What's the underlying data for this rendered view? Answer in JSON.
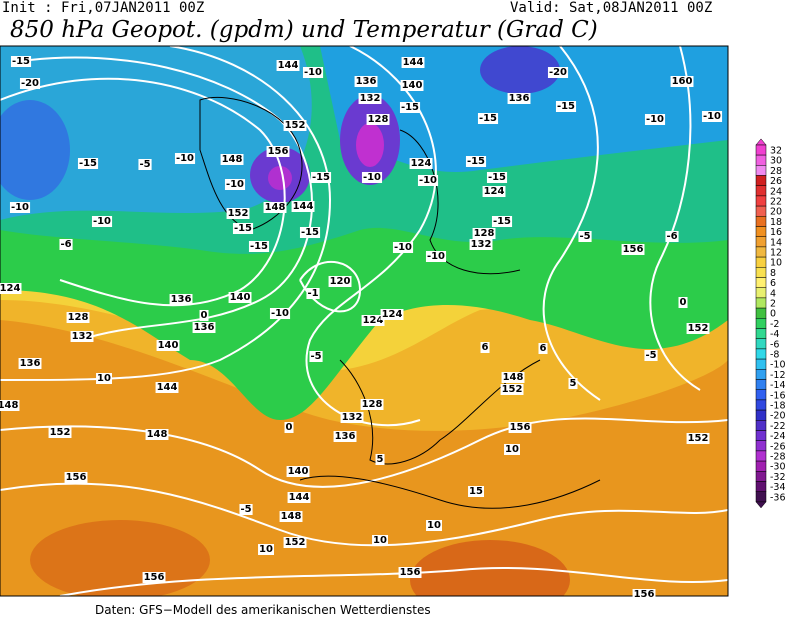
{
  "header": {
    "init": "Init : Fri,07JAN2011 00Z",
    "valid": "Valid: Sat,08JAN2011 00Z",
    "title": "850 hPa Geopot. (gpdm) und Temperatur (Grad C)"
  },
  "colorbar": {
    "labels": [
      32,
      30,
      28,
      26,
      24,
      22,
      20,
      18,
      16,
      14,
      12,
      10,
      8,
      6,
      4,
      2,
      0,
      -2,
      -4,
      -6,
      -8,
      -10,
      -12,
      -14,
      -16,
      -18,
      -20,
      -22,
      -24,
      -26,
      -28,
      -30,
      -32,
      -34,
      -36
    ]
  },
  "contour_labels": [
    "144",
    "-10",
    "136",
    "140",
    "144",
    "160",
    "-20",
    "136",
    "-15",
    "-10",
    "-10",
    "-15",
    "-15",
    "132",
    "128",
    "-10",
    "124",
    "-15",
    "-15",
    "124",
    "-10",
    "-15",
    "-20",
    "-15",
    "-5",
    "-10",
    "148",
    "156",
    "152",
    "-10",
    "-15",
    "152",
    "148",
    "144",
    "-15",
    "-15",
    "-15",
    "-10",
    "-10",
    "-6",
    "124",
    "128",
    "132",
    "136",
    "10",
    "136",
    "0",
    "136",
    "140",
    "140",
    "144",
    "-10",
    "-1",
    "120",
    "124",
    "124",
    "-10",
    "-10",
    "128",
    "132",
    "-15",
    "-5",
    "156",
    "-6",
    "0",
    "152",
    "-5",
    "148",
    "152",
    "148",
    "128",
    "132",
    "136",
    "140",
    "144",
    "148",
    "152",
    "156",
    "-5",
    "5",
    "10",
    "156",
    "152",
    "152",
    "148",
    "15",
    "10",
    "10",
    "10",
    "156",
    "156",
    "156",
    "0",
    "-5",
    "6",
    "6",
    "5"
  ],
  "footer": "Daten: GFS−Modell des amerikanischen Wetterdienstes"
}
